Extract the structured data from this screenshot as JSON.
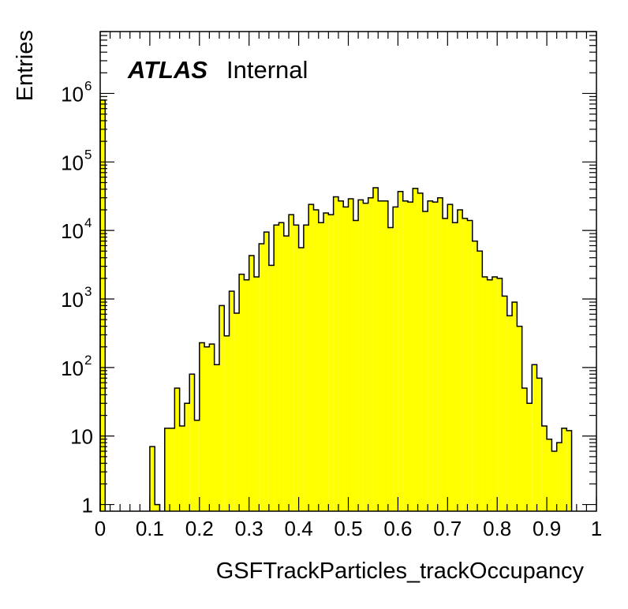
{
  "chart_data": {
    "type": "bar",
    "histogram": true,
    "title": "",
    "xlabel": "GSFTrackParticles_trackOccupancy",
    "ylabel": "Entries",
    "xlim": [
      0,
      1
    ],
    "ylim": [
      0.8,
      8000000
    ],
    "log_y": true,
    "grid": false,
    "fill_color": "#ffff00",
    "edge_color": "#000000",
    "atlas_label": "ATLAS",
    "atlas_status": "Internal",
    "x_tick_labels": [
      "0",
      "0.1",
      "0.2",
      "0.3",
      "0.4",
      "0.5",
      "0.6",
      "0.7",
      "0.8",
      "0.9",
      "1"
    ],
    "y_tick_labels": [
      {
        "value": 1,
        "base": "1",
        "exp": ""
      },
      {
        "value": 10,
        "base": "10",
        "exp": ""
      },
      {
        "value": 100,
        "base": "10",
        "exp": "2"
      },
      {
        "value": 1000,
        "base": "10",
        "exp": "3"
      },
      {
        "value": 10000,
        "base": "10",
        "exp": "4"
      },
      {
        "value": 100000,
        "base": "10",
        "exp": "5"
      },
      {
        "value": 1000000,
        "base": "10",
        "exp": "6"
      }
    ],
    "bin_width": 0.01,
    "bin_low_edges": [
      0.0,
      0.1,
      0.11,
      0.13,
      0.14,
      0.15,
      0.16,
      0.17,
      0.18,
      0.19,
      0.2,
      0.21,
      0.22,
      0.23,
      0.24,
      0.25,
      0.26,
      0.27,
      0.28,
      0.29,
      0.3,
      0.31,
      0.32,
      0.33,
      0.34,
      0.35,
      0.36,
      0.37,
      0.38,
      0.39,
      0.4,
      0.41,
      0.42,
      0.43,
      0.44,
      0.45,
      0.46,
      0.47,
      0.48,
      0.49,
      0.5,
      0.51,
      0.52,
      0.53,
      0.54,
      0.55,
      0.56,
      0.57,
      0.58,
      0.59,
      0.6,
      0.61,
      0.62,
      0.63,
      0.64,
      0.65,
      0.66,
      0.67,
      0.68,
      0.69,
      0.7,
      0.71,
      0.72,
      0.73,
      0.74,
      0.75,
      0.76,
      0.77,
      0.78,
      0.79,
      0.8,
      0.81,
      0.82,
      0.83,
      0.84,
      0.85,
      0.86,
      0.87,
      0.88,
      0.89,
      0.9,
      0.91,
      0.92,
      0.93,
      0.94
    ],
    "values": [
      800000,
      7,
      1,
      13,
      13,
      50,
      14,
      30,
      80,
      17,
      230,
      200,
      220,
      110,
      800,
      290,
      1300,
      620,
      2300,
      1900,
      4300,
      2100,
      6400,
      9500,
      3100,
      12000,
      13000,
      8300,
      17000,
      12000,
      5600,
      12000,
      24000,
      20000,
      13000,
      18000,
      17000,
      31000,
      27000,
      22000,
      29000,
      14000,
      28000,
      25000,
      30000,
      42000,
      27000,
      27000,
      11000,
      22000,
      37000,
      27000,
      26000,
      41000,
      35000,
      19000,
      27000,
      26000,
      30000,
      15000,
      24000,
      13000,
      20000,
      15000,
      14000,
      7000,
      5000,
      2100,
      1900,
      2100,
      2000,
      1100,
      570,
      900,
      400,
      50,
      30,
      110,
      70,
      14,
      9,
      6,
      8,
      13,
      12
    ]
  }
}
